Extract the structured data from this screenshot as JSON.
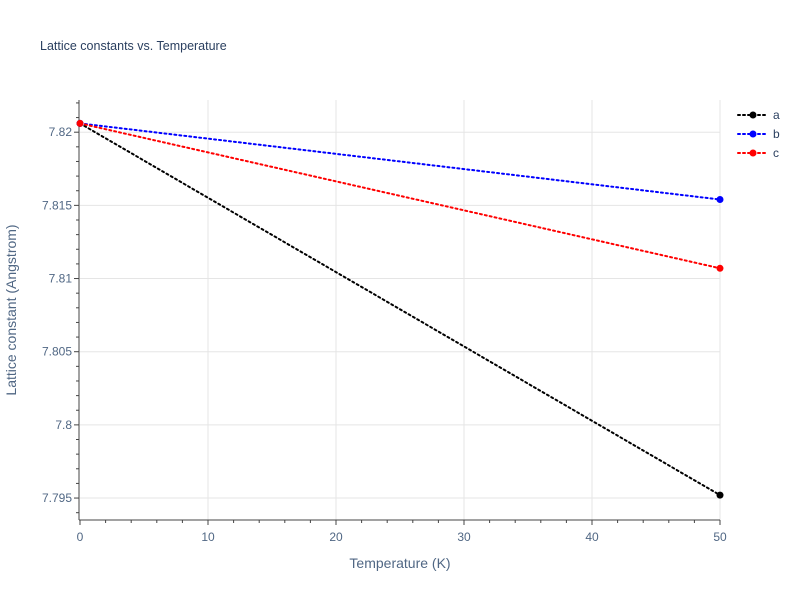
{
  "chart_data": {
    "type": "line",
    "title": "Lattice constants vs. Temperature",
    "xlabel": "Temperature (K)",
    "ylabel": "Lattice constant (Angstrom)",
    "xlim": [
      0,
      50
    ],
    "ylim": [
      7.7935,
      7.8222
    ],
    "x_ticks": [
      0,
      10,
      20,
      30,
      40,
      50
    ],
    "x_tick_labels": [
      "0",
      "10",
      "20",
      "30",
      "40",
      "50"
    ],
    "y_ticks": [
      7.795,
      7.8,
      7.805,
      7.81,
      7.815,
      7.82
    ],
    "y_tick_labels": [
      "7.795",
      "7.8",
      "7.805",
      "7.81",
      "7.815",
      "7.82"
    ],
    "grid": true,
    "legend_position": "top-right",
    "line_style": "dotted",
    "markers": "endpoints",
    "series": [
      {
        "name": "a",
        "color": "#000000",
        "x": [
          0,
          10,
          20,
          30,
          40,
          50
        ],
        "y": [
          7.8206,
          7.81552,
          7.81044,
          7.80536,
          7.80028,
          7.7952
        ]
      },
      {
        "name": "b",
        "color": "#0000ff",
        "x": [
          0,
          10,
          20,
          30,
          40,
          50
        ],
        "y": [
          7.8206,
          7.81956,
          7.81852,
          7.81748,
          7.81644,
          7.8154
        ]
      },
      {
        "name": "c",
        "color": "#ff0000",
        "x": [
          0,
          10,
          20,
          30,
          40,
          50
        ],
        "y": [
          7.8206,
          7.81862,
          7.81664,
          7.81466,
          7.81268,
          7.8107
        ]
      }
    ]
  }
}
